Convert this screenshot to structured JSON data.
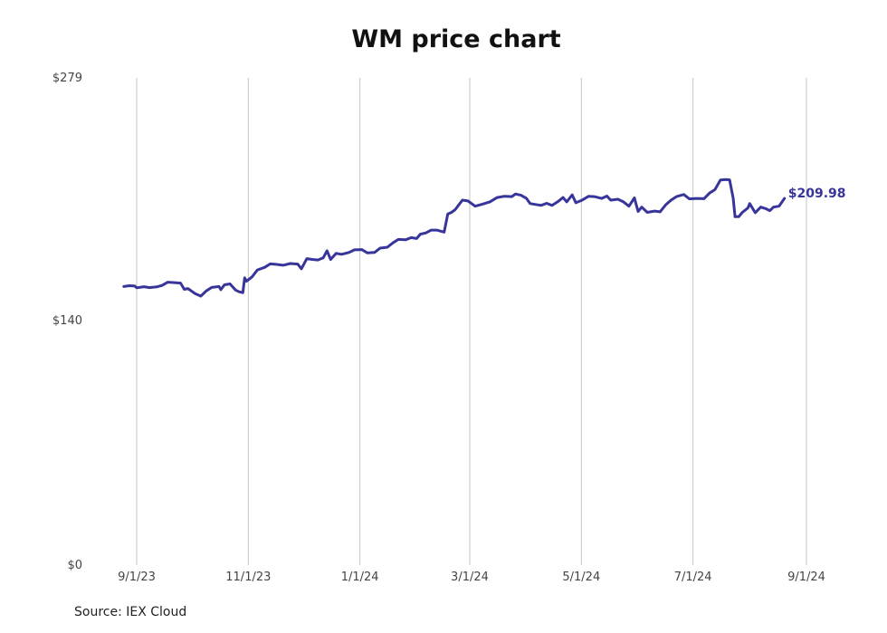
{
  "source": "Source: IEX Cloud",
  "colors": {
    "line": "#38359a",
    "grid": "#c4c4c4",
    "text": "#444444"
  },
  "chart_data": {
    "type": "line",
    "title": "WM price chart",
    "xlabel": "",
    "ylabel": "",
    "ylim": [
      0,
      279
    ],
    "xlim": [
      "2023-08-01",
      "2024-09-01"
    ],
    "y_ticks": [
      {
        "value": 0,
        "label": "$0"
      },
      {
        "value": 140,
        "label": "$140"
      },
      {
        "value": 279,
        "label": "$279"
      }
    ],
    "x_ticks": [
      {
        "date": "2023-09-01",
        "label": "9/1/23"
      },
      {
        "date": "2023-11-01",
        "label": "11/1/23"
      },
      {
        "date": "2024-01-01",
        "label": "1/1/24"
      },
      {
        "date": "2024-03-01",
        "label": "3/1/24"
      },
      {
        "date": "2024-05-01",
        "label": "5/1/24"
      },
      {
        "date": "2024-07-01",
        "label": "7/1/24"
      },
      {
        "date": "2024-09-01",
        "label": "9/1/24"
      }
    ],
    "grid": "vertical",
    "end_label": "$209.98",
    "series": [
      {
        "points": [
          [
            "2023-08-25",
            159.5
          ],
          [
            "2023-08-28",
            160.0
          ],
          [
            "2023-08-31",
            159.8
          ],
          [
            "2023-09-01",
            158.8
          ],
          [
            "2023-09-05",
            159.4
          ],
          [
            "2023-09-08",
            158.9
          ],
          [
            "2023-09-12",
            159.3
          ],
          [
            "2023-09-15",
            160.2
          ],
          [
            "2023-09-18",
            162.0
          ],
          [
            "2023-09-21",
            161.8
          ],
          [
            "2023-09-25",
            161.5
          ],
          [
            "2023-09-27",
            157.9
          ],
          [
            "2023-09-29",
            158.4
          ],
          [
            "2023-10-03",
            155.4
          ],
          [
            "2023-10-06",
            154.0
          ],
          [
            "2023-10-09",
            157.0
          ],
          [
            "2023-10-12",
            159.0
          ],
          [
            "2023-10-16",
            159.5
          ],
          [
            "2023-10-17",
            157.7
          ],
          [
            "2023-10-19",
            160.5
          ],
          [
            "2023-10-22",
            161.0
          ],
          [
            "2023-10-25",
            157.5
          ],
          [
            "2023-10-27",
            156.5
          ],
          [
            "2023-10-29",
            156.0
          ],
          [
            "2023-10-30",
            164.5
          ],
          [
            "2023-10-31",
            162.5
          ],
          [
            "2023-11-03",
            165.0
          ],
          [
            "2023-11-06",
            169.0
          ],
          [
            "2023-11-10",
            170.5
          ],
          [
            "2023-11-13",
            172.5
          ],
          [
            "2023-11-16",
            172.2
          ],
          [
            "2023-11-20",
            171.7
          ],
          [
            "2023-11-24",
            172.7
          ],
          [
            "2023-11-28",
            172.4
          ],
          [
            "2023-11-30",
            169.7
          ],
          [
            "2023-12-03",
            175.5
          ],
          [
            "2023-12-06",
            175.0
          ],
          [
            "2023-12-09",
            174.7
          ],
          [
            "2023-12-12",
            176.0
          ],
          [
            "2023-12-14",
            180.0
          ],
          [
            "2023-12-16",
            175.0
          ],
          [
            "2023-12-19",
            178.5
          ],
          [
            "2023-12-22",
            178.0
          ],
          [
            "2023-12-26",
            179.0
          ],
          [
            "2023-12-29",
            180.5
          ],
          [
            "2024-01-02",
            180.7
          ],
          [
            "2024-01-05",
            178.8
          ],
          [
            "2024-01-09",
            179.0
          ],
          [
            "2024-01-12",
            181.5
          ],
          [
            "2024-01-16",
            182.0
          ],
          [
            "2024-01-19",
            184.5
          ],
          [
            "2024-01-22",
            186.5
          ],
          [
            "2024-01-26",
            186.3
          ],
          [
            "2024-01-29",
            187.5
          ],
          [
            "2024-02-01",
            187.0
          ],
          [
            "2024-02-03",
            189.5
          ],
          [
            "2024-02-06",
            190.2
          ],
          [
            "2024-02-09",
            191.8
          ],
          [
            "2024-02-12",
            191.8
          ],
          [
            "2024-02-16",
            190.7
          ],
          [
            "2024-02-18",
            201.0
          ],
          [
            "2024-02-20",
            202.0
          ],
          [
            "2024-02-22",
            203.5
          ],
          [
            "2024-02-26",
            209.0
          ],
          [
            "2024-02-29",
            208.5
          ],
          [
            "2024-03-04",
            205.5
          ],
          [
            "2024-03-08",
            206.7
          ],
          [
            "2024-03-12",
            208.0
          ],
          [
            "2024-03-16",
            210.5
          ],
          [
            "2024-03-20",
            211.2
          ],
          [
            "2024-03-24",
            211.0
          ],
          [
            "2024-03-26",
            212.5
          ],
          [
            "2024-03-29",
            211.8
          ],
          [
            "2024-04-01",
            210.0
          ],
          [
            "2024-04-03",
            207.0
          ],
          [
            "2024-04-06",
            206.5
          ],
          [
            "2024-04-09",
            206.0
          ],
          [
            "2024-04-12",
            207.2
          ],
          [
            "2024-04-15",
            206.0
          ],
          [
            "2024-04-18",
            208.0
          ],
          [
            "2024-04-21",
            210.5
          ],
          [
            "2024-04-23",
            208.0
          ],
          [
            "2024-04-26",
            212.0
          ],
          [
            "2024-04-28",
            207.5
          ],
          [
            "2024-05-01",
            208.8
          ],
          [
            "2024-05-05",
            211.2
          ],
          [
            "2024-05-08",
            211.0
          ],
          [
            "2024-05-12",
            210.0
          ],
          [
            "2024-05-15",
            211.3
          ],
          [
            "2024-05-17",
            209.0
          ],
          [
            "2024-05-21",
            209.5
          ],
          [
            "2024-05-24",
            208.0
          ],
          [
            "2024-05-27",
            205.5
          ],
          [
            "2024-05-30",
            210.3
          ],
          [
            "2024-06-01",
            202.5
          ],
          [
            "2024-06-03",
            205.0
          ],
          [
            "2024-06-06",
            202.0
          ],
          [
            "2024-06-10",
            202.7
          ],
          [
            "2024-06-13",
            202.3
          ],
          [
            "2024-06-16",
            206.2
          ],
          [
            "2024-06-19",
            209.0
          ],
          [
            "2024-06-22",
            211.0
          ],
          [
            "2024-06-26",
            212.2
          ],
          [
            "2024-06-29",
            209.7
          ],
          [
            "2024-07-03",
            210.0
          ],
          [
            "2024-07-07",
            209.8
          ],
          [
            "2024-07-10",
            213.0
          ],
          [
            "2024-07-13",
            215.0
          ],
          [
            "2024-07-16",
            220.5
          ],
          [
            "2024-07-19",
            220.8
          ],
          [
            "2024-07-21",
            220.6
          ],
          [
            "2024-07-23",
            210.0
          ],
          [
            "2024-07-24",
            199.5
          ],
          [
            "2024-07-26",
            199.5
          ],
          [
            "2024-07-28",
            202.0
          ],
          [
            "2024-07-31",
            204.5
          ],
          [
            "2024-08-01",
            207.0
          ],
          [
            "2024-08-04",
            201.8
          ],
          [
            "2024-08-07",
            205.0
          ],
          [
            "2024-08-10",
            204.0
          ],
          [
            "2024-08-12",
            203.0
          ],
          [
            "2024-08-14",
            205.0
          ],
          [
            "2024-08-17",
            205.5
          ],
          [
            "2024-08-20",
            209.98
          ]
        ]
      }
    ]
  }
}
